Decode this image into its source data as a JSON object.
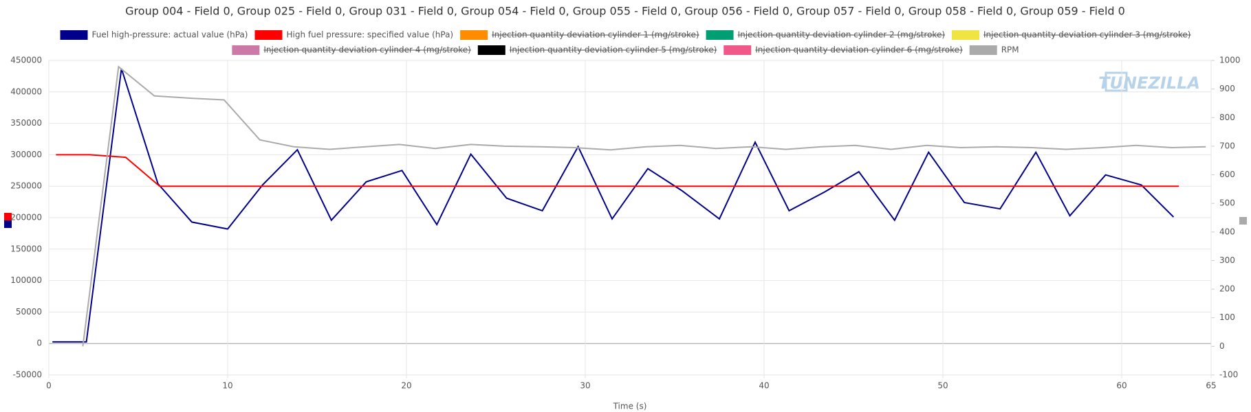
{
  "chart_data": {
    "type": "line",
    "title": "Group 004 - Field 0, Group 025 - Field 0, Group 031 - Field 0, Group 054 - Field 0, Group 055 - Field 0, Group 056 - Field 0, Group 057 - Field 0, Group 058 - Field 0, Group 059 - Field 0",
    "x_label": "Time (s)",
    "watermark": "TUNEZILLA",
    "xlim": [
      0,
      65
    ],
    "xticks": [
      0,
      10,
      20,
      30,
      40,
      50,
      60,
      65
    ],
    "ylim": [
      -50000,
      450000
    ],
    "yticks": [
      -50000,
      0,
      50000,
      100000,
      150000,
      200000,
      250000,
      300000,
      350000,
      400000,
      450000
    ],
    "y2lim": [
      -100,
      1000
    ],
    "y2ticks": [
      -100,
      0,
      100,
      200,
      300,
      400,
      500,
      600,
      700,
      800,
      900,
      1000
    ],
    "grid": true,
    "series": [
      {
        "name": "Fuel high-pressure: actual value (hPa)",
        "color": "#00008b",
        "x": [
          0.2,
          2.1,
          4.06,
          6.1,
          8.0,
          10.0,
          11.95,
          13.9,
          15.8,
          17.75,
          19.75,
          21.7,
          23.6,
          25.6,
          27.6,
          29.6,
          31.5,
          33.5,
          35.4,
          37.5,
          39.5,
          41.4,
          43.4,
          45.3,
          47.3,
          49.2,
          51.2,
          53.2,
          55.2,
          57.1,
          59.1,
          61.1,
          62.9
        ],
        "values": [
          2500,
          2500,
          437000,
          254000,
          193000,
          182000,
          252000,
          308000,
          196000,
          257000,
          275000,
          189000,
          301000,
          231000,
          211000,
          313000,
          198000,
          278000,
          243000,
          198000,
          320000,
          211000,
          241000,
          273000,
          196000,
          304000,
          224000,
          214000,
          304000,
          203000,
          268000,
          252000,
          201000
        ]
      },
      {
        "name": "High fuel pressure: specified value (hPa)",
        "color": "#ff0000",
        "x": [
          0.4,
          2.3,
          4.3,
          6.2,
          63.2
        ],
        "values": [
          300000,
          300000,
          296000,
          250000,
          250000
        ]
      },
      {
        "name": "Injection quantity deviation cylinder 1 (mg/stroke)",
        "color": "#ff8c00",
        "hidden": true
      },
      {
        "name": "Injection quantity deviation cylinder 2 (mg/stroke)",
        "color": "#009e73",
        "hidden": true
      },
      {
        "name": "Injection quantity deviation cylinder 3 (mg/stroke)",
        "color": "#f0e442",
        "hidden": true
      },
      {
        "name": "Injection quantity deviation cylinder 4 (mg/stroke)",
        "color": "#cc79a7",
        "hidden": true
      },
      {
        "name": "Injection quantity deviation cylinder 5 (mg/stroke)",
        "color": "#000000",
        "hidden": true
      },
      {
        "name": "Injection quantity deviation cylinder 6 (mg/stroke)",
        "color": "#f0588a",
        "hidden": true
      },
      {
        "name": "RPM",
        "color": "#aaaaaa",
        "axis": "y2",
        "x": [
          1.9,
          3.9,
          5.9,
          7.9,
          9.8,
          11.8,
          13.7,
          15.7,
          17.7,
          19.6,
          21.6,
          23.6,
          25.5,
          27.5,
          29.4,
          31.4,
          33.4,
          35.3,
          37.3,
          39.3,
          41.2,
          43.2,
          45.1,
          47.1,
          49.1,
          51.0,
          53.0,
          55.0,
          56.9,
          58.9,
          60.8,
          62.8,
          64.7
        ],
        "values": [
          0,
          978,
          876,
          868,
          862,
          722,
          698,
          689,
          698,
          706,
          692,
          706,
          700,
          698,
          695,
          687,
          698,
          703,
          692,
          698,
          689,
          698,
          703,
          689,
          703,
          695,
          698,
          695,
          689,
          695,
          703,
          695,
          698
        ]
      }
    ]
  }
}
